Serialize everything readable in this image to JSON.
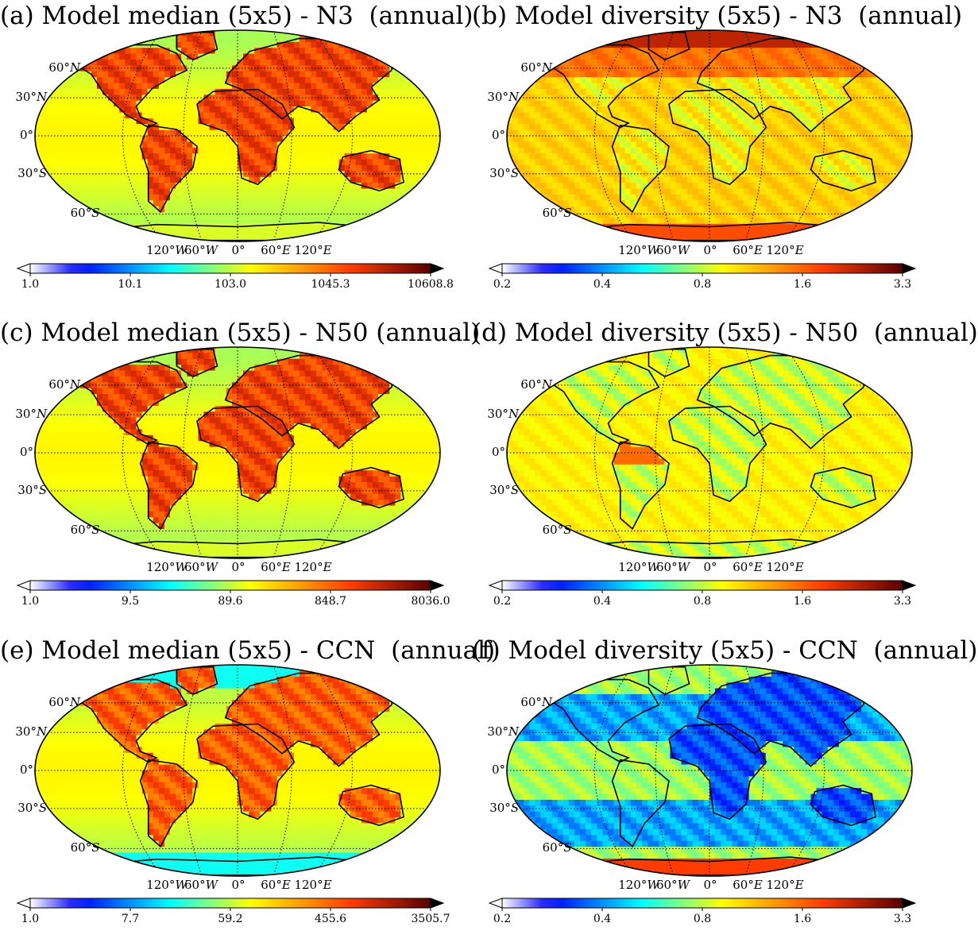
{
  "panels": [
    {
      "id": "a",
      "title": "(a) Model median (5x5) - N3  (annual)",
      "field": "median",
      "variable": "N3",
      "colorbar": {
        "ticks": [
          "1.0",
          "10.1",
          "103.0",
          "1045.3",
          "10608.8"
        ],
        "scale": "log"
      }
    },
    {
      "id": "b",
      "title": "(b) Model diversity (5x5) - N3  (annual)",
      "field": "diversity",
      "variable": "N3",
      "colorbar": {
        "ticks": [
          "0.2",
          "0.4",
          "0.8",
          "1.6",
          "3.3"
        ],
        "scale": "log"
      }
    },
    {
      "id": "c",
      "title": "(c) Model median (5x5) - N50 (annual)",
      "field": "median",
      "variable": "N50",
      "colorbar": {
        "ticks": [
          "1.0",
          "9.5",
          "89.6",
          "848.7",
          "8036.0"
        ],
        "scale": "log"
      }
    },
    {
      "id": "d",
      "title": "(d) Model diversity (5x5) - N50  (annual)",
      "field": "diversity",
      "variable": "N50",
      "colorbar": {
        "ticks": [
          "0.2",
          "0.4",
          "0.8",
          "1.6",
          "3.3"
        ],
        "scale": "log"
      }
    },
    {
      "id": "e",
      "title": "(e) Model median (5x5) - CCN  (annual)",
      "field": "median",
      "variable": "CCN",
      "colorbar": {
        "ticks": [
          "1.0",
          "7.7",
          "59.2",
          "455.6",
          "3505.7"
        ],
        "scale": "log"
      }
    },
    {
      "id": "f",
      "title": "(f) Model diversity (5x5) - CCN  (annual)",
      "field": "diversity",
      "variable": "CCN",
      "colorbar": {
        "ticks": [
          "0.2",
          "0.4",
          "0.8",
          "1.6",
          "3.3"
        ],
        "scale": "log"
      }
    }
  ],
  "axes": {
    "lat_labels": [
      {
        "num": "60°",
        "hem": "N"
      },
      {
        "num": "30°",
        "hem": "N"
      },
      {
        "num": "0°",
        "hem": ""
      },
      {
        "num": "30°",
        "hem": "S"
      },
      {
        "num": "60°",
        "hem": "S"
      }
    ],
    "lon_labels": [
      {
        "num": "120°",
        "hem": "W"
      },
      {
        "num": "60°",
        "hem": "W"
      },
      {
        "num": "0°",
        "hem": ""
      },
      {
        "num": "60°",
        "hem": "E"
      },
      {
        "num": "120°",
        "hem": "E"
      }
    ],
    "projection": "Robinson",
    "grid_resolution": "5x5",
    "gridlines": "dotted"
  },
  "colormap": {
    "name": "jet with white low end",
    "colors": [
      "#ffffff",
      "#0000ff",
      "#00ffff",
      "#ffff00",
      "#ff0000",
      "#000000"
    ]
  }
}
